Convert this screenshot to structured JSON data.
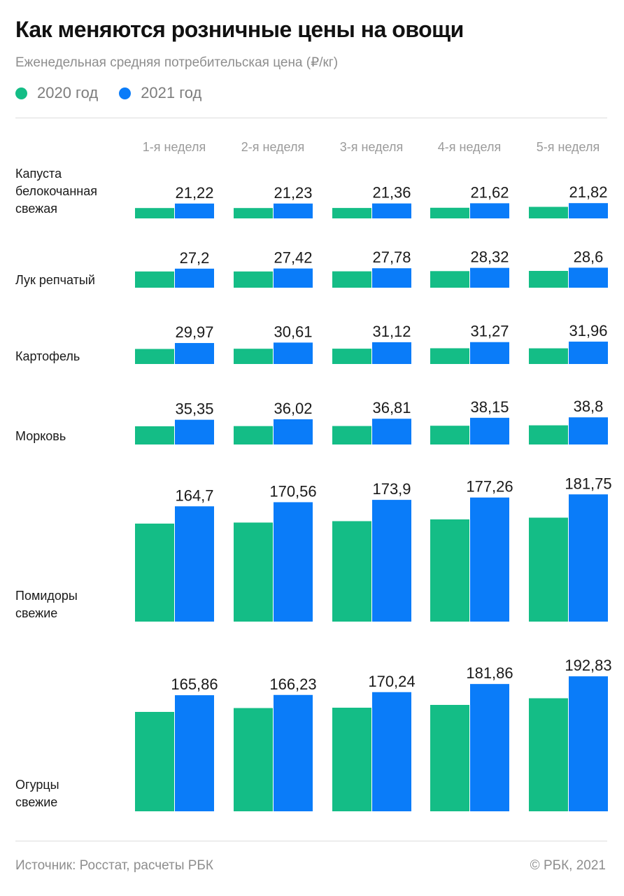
{
  "title": "Как меняются розничные цены на овощи",
  "subtitle": "Еженедельная средняя потребительская цена (₽/кг)",
  "legend": [
    {
      "label": "2020 год",
      "color": "#14bd86"
    },
    {
      "label": "2021 год",
      "color": "#0a7cf9"
    }
  ],
  "footer": {
    "source": "Источник:  Росстат, расчеты РБК",
    "copyright": "©  РБК, 2021"
  },
  "chart_data": {
    "type": "bar",
    "categories": [
      "1-я неделя",
      "2-я неделя",
      "3-я неделя",
      "4-я неделя",
      "5-я неделя"
    ],
    "grid": false,
    "legend_position": "top-left",
    "panels": [
      {
        "label": [
          "Капуста",
          "белокочанная",
          "свежая"
        ],
        "series": [
          {
            "name": "2020 год",
            "values": [
              14.8,
              14.8,
              14.9,
              15.2,
              16.5
            ]
          },
          {
            "name": "2021 год",
            "values": [
              21.22,
              21.23,
              21.36,
              21.62,
              21.82
            ]
          }
        ],
        "data_labels": [
          "21,22",
          "21,23",
          "21,36",
          "21,62",
          "21,82"
        ]
      },
      {
        "label": [
          "Лук репчатый"
        ],
        "series": [
          {
            "name": "2020 год",
            "values": [
              23.2,
              23.2,
              23.4,
              23.7,
              24.0
            ]
          },
          {
            "name": "2021 год",
            "values": [
              27.2,
              27.42,
              27.78,
              28.32,
              28.6
            ]
          }
        ],
        "data_labels": [
          "27,2",
          "27,42",
          "27,78",
          "28,32",
          "28,6"
        ]
      },
      {
        "label": [
          "Картофель"
        ],
        "series": [
          {
            "name": "2020 год",
            "values": [
              21.5,
              21.8,
              21.9,
              22.5,
              22.4
            ]
          },
          {
            "name": "2021 год",
            "values": [
              29.97,
              30.61,
              31.12,
              31.27,
              31.96
            ]
          }
        ],
        "data_labels": [
          "29,97",
          "30,61",
          "31,12",
          "31,27",
          "31,96"
        ]
      },
      {
        "label": [
          "Морковь"
        ],
        "series": [
          {
            "name": "2020 год",
            "values": [
              26.0,
              26.3,
              26.4,
              26.8,
              27.4
            ]
          },
          {
            "name": "2021 год",
            "values": [
              35.35,
              36.02,
              36.81,
              38.15,
              38.8
            ]
          }
        ],
        "data_labels": [
          "35,35",
          "36,02",
          "36,81",
          "38,15",
          "38,8"
        ]
      },
      {
        "label": [
          "Помидоры",
          "свежие"
        ],
        "series": [
          {
            "name": "2020 год",
            "values": [
              140.0,
              141.5,
              143.5,
              146.0,
              148.5
            ]
          },
          {
            "name": "2021 год",
            "values": [
              164.7,
              170.56,
              173.9,
              177.26,
              181.75
            ]
          }
        ],
        "data_labels": [
          "164,7",
          "170,56",
          "173,9",
          "177,26",
          "181,75"
        ]
      },
      {
        "label": [
          "Огурцы",
          "свежие"
        ],
        "series": [
          {
            "name": "2020 год",
            "values": [
              142.0,
              147.5,
              148.0,
              152.0,
              161.5
            ]
          },
          {
            "name": "2021 год",
            "values": [
              165.86,
              166.23,
              170.24,
              181.86,
              192.83
            ]
          }
        ],
        "data_labels": [
          "165,86",
          "166,23",
          "170,24",
          "181,86",
          "192,83"
        ]
      }
    ]
  }
}
